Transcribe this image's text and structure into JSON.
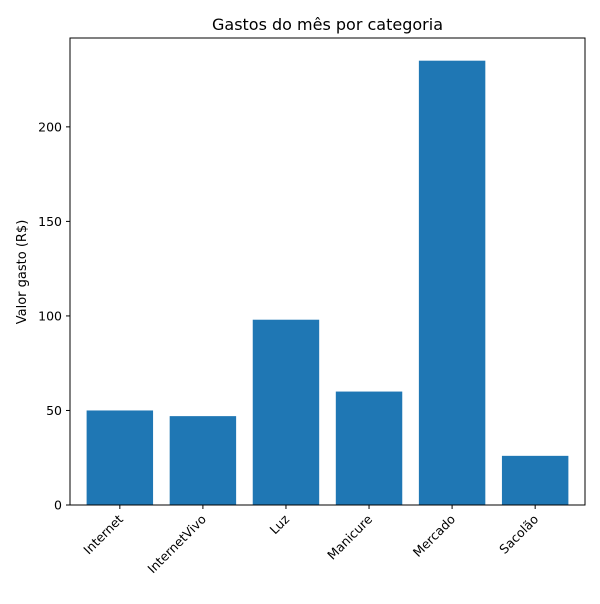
{
  "chart_data": {
    "type": "bar",
    "title": "Gastos do mês por categoria",
    "xlabel": "",
    "ylabel": "Valor gasto (R$)",
    "categories": [
      "Internet",
      "InternetVivo",
      "Luz",
      "Manicure",
      "Mercado",
      "Sacolão"
    ],
    "values": [
      50,
      47,
      98,
      60,
      235,
      26
    ],
    "ylim": [
      0,
      247
    ],
    "yticks": [
      0,
      50,
      100,
      150,
      200
    ],
    "bar_color": "#1f77b4",
    "grid": false,
    "legend": "none"
  }
}
